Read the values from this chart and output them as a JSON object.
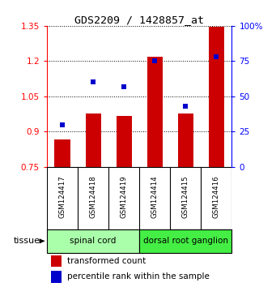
{
  "title": "GDS2209 / 1428857_at",
  "samples": [
    "GSM124417",
    "GSM124418",
    "GSM124419",
    "GSM124414",
    "GSM124415",
    "GSM124416"
  ],
  "bar_values": [
    0.865,
    0.975,
    0.965,
    1.22,
    0.975,
    1.345
  ],
  "dot_values": [
    30,
    60,
    57,
    75,
    43,
    78
  ],
  "bar_color": "#cc0000",
  "dot_color": "#0000cc",
  "ylim_left": [
    0.75,
    1.35
  ],
  "ylim_right": [
    0,
    100
  ],
  "yticks_left": [
    0.75,
    0.9,
    1.05,
    1.2,
    1.35
  ],
  "yticks_right": [
    0,
    25,
    50,
    75,
    100
  ],
  "ytick_labels_left": [
    "0.75",
    "0.9",
    "1.05",
    "1.2",
    "1.35"
  ],
  "ytick_labels_right": [
    "0",
    "25",
    "50",
    "75",
    "100%"
  ],
  "bar_bottom": 0.75,
  "groups": [
    {
      "label": "spinal cord",
      "indices": [
        0,
        1,
        2
      ],
      "color": "#aaffaa"
    },
    {
      "label": "dorsal root ganglion",
      "indices": [
        3,
        4,
        5
      ],
      "color": "#44ee44"
    }
  ],
  "tissue_label": "tissue",
  "legend_bar_label": "transformed count",
  "legend_dot_label": "percentile rank within the sample",
  "bg_color": "#ffffff",
  "sample_box_color": "#cccccc"
}
